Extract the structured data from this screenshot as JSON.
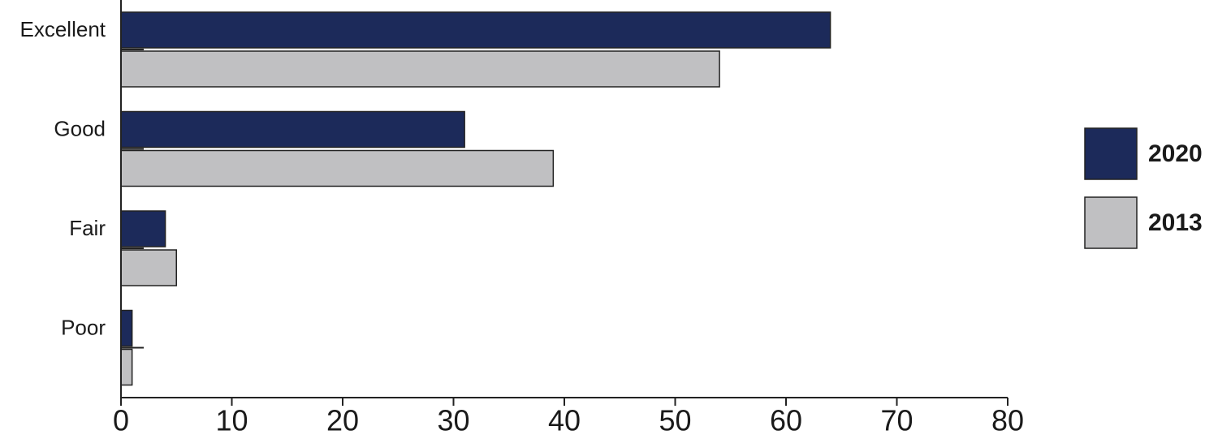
{
  "chart_data": {
    "type": "bar",
    "orientation": "horizontal",
    "categories": [
      "Excellent",
      "Good",
      "Fair",
      "Poor"
    ],
    "series": [
      {
        "name": "2020",
        "color": "#1c2a5a",
        "values": [
          64,
          31,
          4,
          1
        ]
      },
      {
        "name": "2013",
        "color": "#c0c0c2",
        "values": [
          54,
          39,
          5,
          1
        ]
      }
    ],
    "xlim": [
      0,
      80
    ],
    "xticks": [
      0,
      10,
      20,
      30,
      40,
      50,
      60,
      70,
      80
    ],
    "legend": "right"
  }
}
